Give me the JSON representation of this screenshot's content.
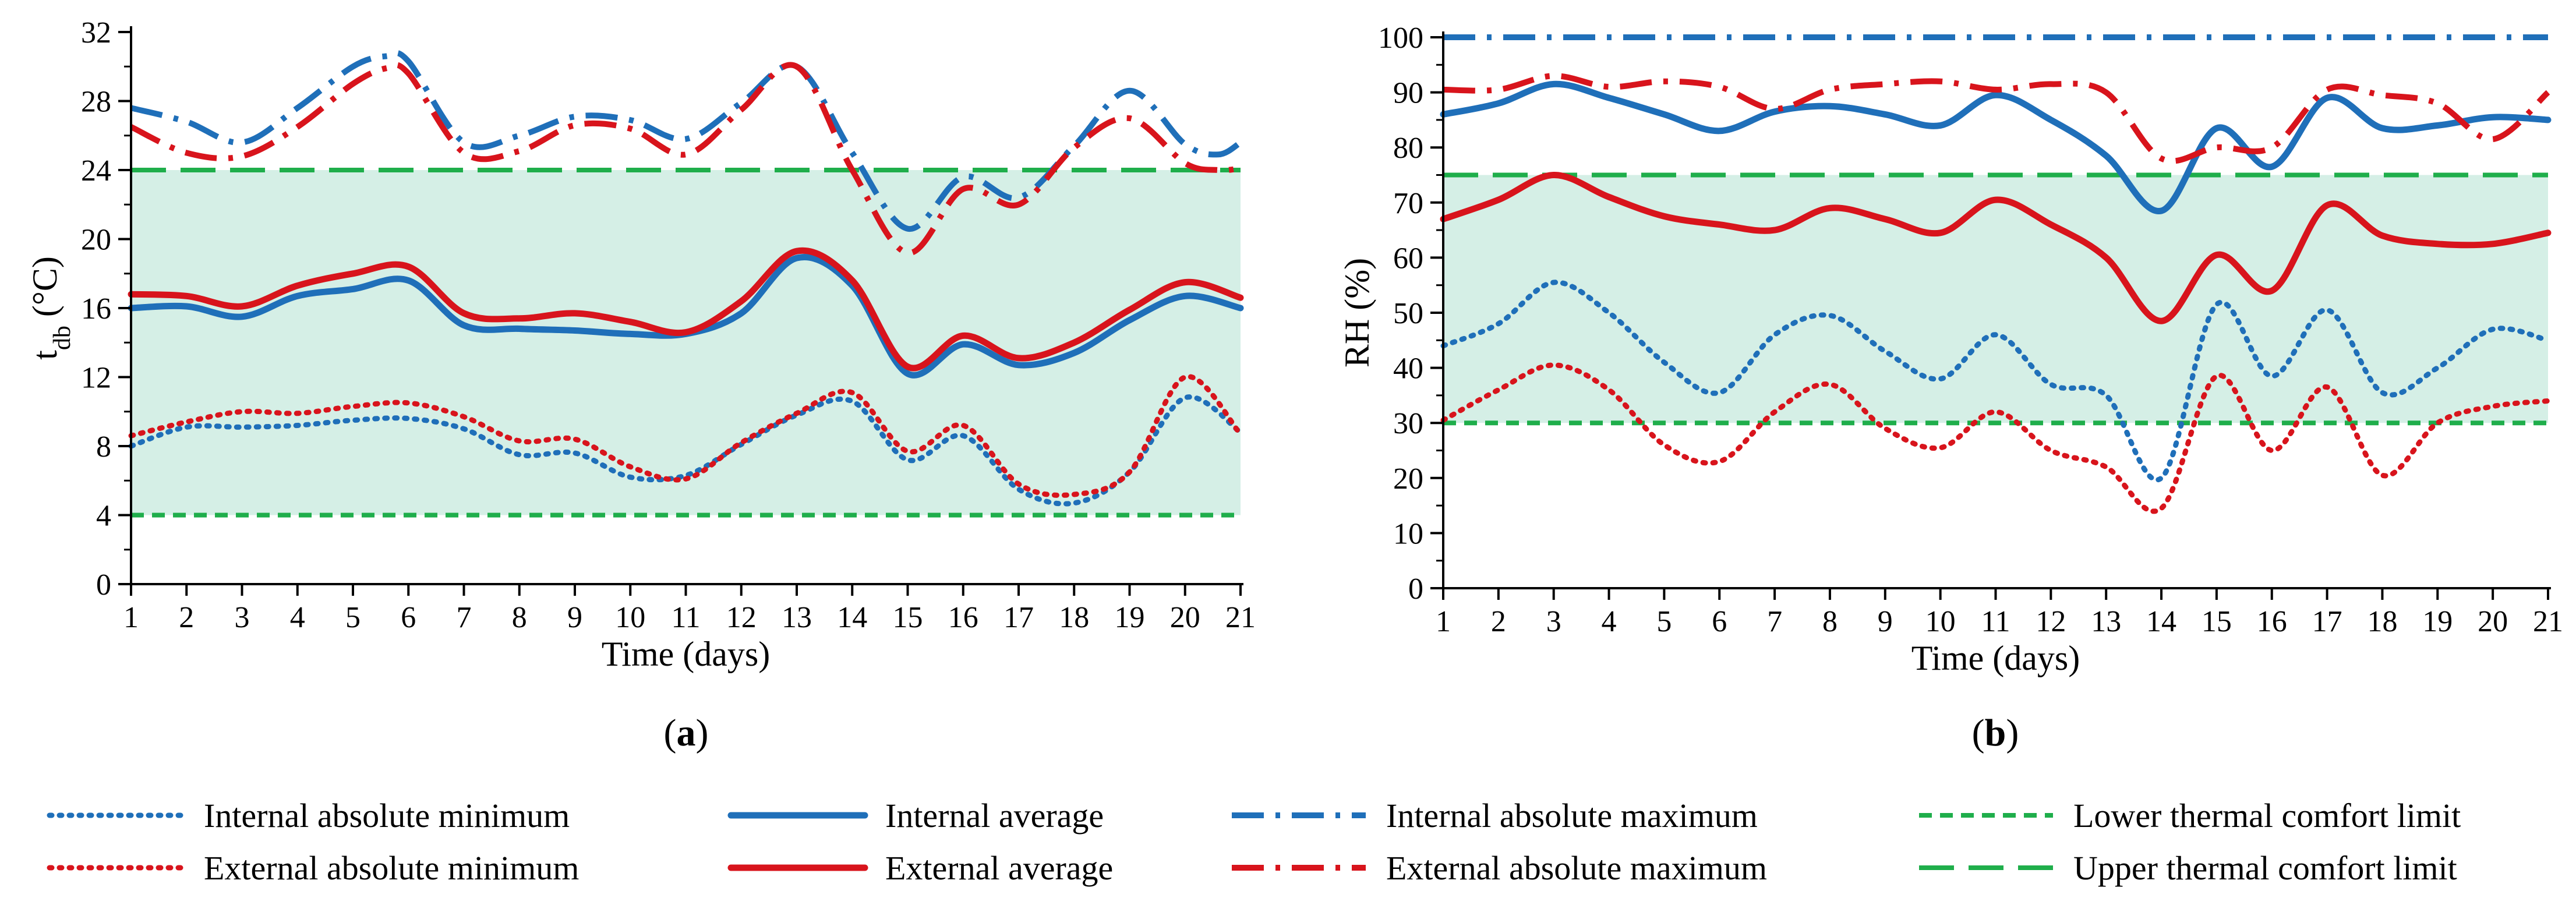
{
  "colors": {
    "internal": "#1f6fb9",
    "external": "#d8141c",
    "comfort": "#1fae4b",
    "band": "#d5efe6",
    "axis": "#000000"
  },
  "chart_data": [
    {
      "id": "a",
      "type": "line",
      "panel_label": "a",
      "ylabel_main": "t",
      "ylabel_sub": "db",
      "ylabel_unit": " (°C)",
      "xlabel": "Time (days)",
      "xlim": [
        1,
        21
      ],
      "ylim": [
        0,
        32
      ],
      "x_ticks": [
        1,
        2,
        3,
        4,
        5,
        6,
        7,
        8,
        9,
        10,
        11,
        12,
        13,
        14,
        15,
        16,
        17,
        18,
        19,
        20,
        21
      ],
      "y_ticks": [
        0,
        4,
        8,
        12,
        16,
        20,
        24,
        28,
        32
      ],
      "comfort_band": [
        4,
        24
      ],
      "series": [
        {
          "key": "int_min",
          "name": "Internal absolute minimum",
          "x": [
            1,
            2,
            3,
            4,
            5,
            6,
            7,
            8,
            9,
            10,
            11,
            12,
            13,
            14,
            15,
            16,
            17,
            18,
            19,
            20,
            21
          ],
          "values": [
            8.0,
            9.1,
            9.1,
            9.2,
            9.5,
            9.6,
            9.0,
            7.5,
            7.6,
            6.2,
            6.3,
            8.1,
            9.8,
            10.6,
            7.2,
            8.6,
            5.5,
            4.7,
            6.5,
            10.8,
            8.8
          ]
        },
        {
          "key": "ext_min",
          "name": "External absolute minimum",
          "x": [
            1,
            2,
            3,
            4,
            5,
            6,
            7,
            8,
            9,
            10,
            11,
            12,
            13,
            14,
            15,
            16,
            17,
            18,
            19,
            20,
            21
          ],
          "values": [
            8.6,
            9.4,
            10.0,
            9.9,
            10.3,
            10.5,
            9.7,
            8.3,
            8.4,
            6.8,
            6.1,
            8.2,
            9.9,
            11.1,
            7.7,
            9.2,
            5.8,
            5.2,
            6.5,
            12.0,
            8.7
          ]
        },
        {
          "key": "int_avg",
          "name": "Internal average",
          "x": [
            1,
            2,
            3,
            4,
            5,
            6,
            7,
            8,
            9,
            10,
            11,
            12,
            13,
            14,
            15,
            16,
            17,
            18,
            19,
            20,
            21
          ],
          "values": [
            16.0,
            16.1,
            15.5,
            16.7,
            17.1,
            17.6,
            15.0,
            14.8,
            14.7,
            14.5,
            14.5,
            15.7,
            18.9,
            17.3,
            12.2,
            13.9,
            12.7,
            13.4,
            15.3,
            16.7,
            16.0
          ]
        },
        {
          "key": "ext_avg",
          "name": "External average",
          "x": [
            1,
            2,
            3,
            4,
            5,
            6,
            7,
            8,
            9,
            10,
            11,
            12,
            13,
            14,
            15,
            16,
            17,
            18,
            19,
            20,
            21
          ],
          "values": [
            16.8,
            16.7,
            16.1,
            17.3,
            18.0,
            18.4,
            15.7,
            15.4,
            15.7,
            15.2,
            14.6,
            16.4,
            19.3,
            17.6,
            12.6,
            14.4,
            13.1,
            14.0,
            15.9,
            17.5,
            16.6
          ]
        },
        {
          "key": "int_max",
          "name": "Internal absolute maximum",
          "x": [
            1,
            2,
            3,
            4,
            5,
            5.6,
            6,
            7,
            8,
            9,
            10,
            11,
            12,
            13,
            14,
            15,
            16,
            17,
            18,
            19,
            20,
            20.6,
            21
          ],
          "values": [
            27.6,
            26.8,
            25.6,
            27.6,
            30.0,
            30.6,
            30.3,
            25.6,
            26.0,
            27.1,
            26.9,
            25.8,
            27.9,
            30.0,
            25.0,
            20.6,
            23.6,
            22.4,
            25.4,
            28.6,
            25.5,
            24.9,
            25.6
          ]
        },
        {
          "key": "ext_max",
          "name": "External absolute maximum",
          "x": [
            1,
            2,
            3,
            4,
            5,
            5.6,
            6,
            7,
            8,
            9,
            10,
            11,
            12,
            13,
            14,
            15,
            16,
            17,
            18,
            19,
            20,
            20.6,
            21
          ],
          "values": [
            26.5,
            25.0,
            24.8,
            26.5,
            29.0,
            29.9,
            29.6,
            25.0,
            25.1,
            26.6,
            26.4,
            24.9,
            27.5,
            30.0,
            24.0,
            19.2,
            22.9,
            22.0,
            25.3,
            27.0,
            24.4,
            24.0,
            24.1
          ]
        }
      ],
      "limits": [
        {
          "key": "lower",
          "name": "Lower thermal comfort limit",
          "value": 4
        },
        {
          "key": "upper",
          "name": "Upper thermal comfort limit",
          "value": 24
        }
      ]
    },
    {
      "id": "b",
      "type": "line",
      "panel_label": "b",
      "ylabel_main": "RH (%)",
      "ylabel_sub": "",
      "ylabel_unit": "",
      "xlabel": "Time (days)",
      "xlim": [
        1,
        21
      ],
      "ylim": [
        0,
        100
      ],
      "x_ticks": [
        1,
        2,
        3,
        4,
        5,
        6,
        7,
        8,
        9,
        10,
        11,
        12,
        13,
        14,
        15,
        16,
        17,
        18,
        19,
        20,
        21
      ],
      "y_ticks": [
        0,
        10,
        20,
        30,
        40,
        50,
        60,
        70,
        80,
        90,
        100
      ],
      "comfort_band": [
        30,
        75
      ],
      "series": [
        {
          "key": "int_min",
          "name": "Internal absolute minimum",
          "x": [
            1,
            2,
            3,
            4,
            5,
            6,
            7,
            8,
            9,
            10,
            11,
            12,
            13,
            14,
            15,
            16,
            17,
            18,
            19,
            20,
            21
          ],
          "values": [
            44,
            48,
            55.5,
            50,
            41,
            35.5,
            46,
            49.5,
            43,
            38,
            46,
            37,
            35,
            20,
            51.5,
            38.5,
            50.5,
            35.5,
            40,
            47,
            45
          ]
        },
        {
          "key": "ext_min",
          "name": "External absolute minimum",
          "x": [
            1,
            2,
            3,
            4,
            5,
            6,
            7,
            8,
            9,
            10,
            11,
            12,
            13,
            14,
            15,
            16,
            17,
            18,
            19,
            20,
            21
          ],
          "values": [
            30.5,
            36,
            40.5,
            36,
            26,
            23,
            32,
            37,
            29,
            25.5,
            32,
            25,
            22,
            14.5,
            38.5,
            25,
            36.5,
            20.5,
            30,
            33,
            34
          ]
        },
        {
          "key": "int_avg",
          "name": "Internal average",
          "x": [
            1,
            2,
            3,
            4,
            5,
            6,
            7,
            8,
            9,
            10,
            11,
            12,
            13,
            14,
            15,
            16,
            17,
            18,
            19,
            20,
            21
          ],
          "values": [
            86,
            88,
            91.5,
            89,
            86,
            83,
            86.5,
            87.5,
            86,
            84,
            89.5,
            85,
            78.5,
            68.5,
            83.5,
            76.5,
            89,
            83.5,
            84,
            85.5,
            85
          ]
        },
        {
          "key": "ext_avg",
          "name": "External average",
          "x": [
            1,
            2,
            3,
            4,
            5,
            6,
            7,
            8,
            9,
            10,
            11,
            12,
            13,
            14,
            15,
            16,
            17,
            18,
            19,
            20,
            21
          ],
          "values": [
            67,
            70.5,
            75,
            71,
            67.5,
            66,
            65,
            69,
            67,
            64.5,
            70.5,
            66,
            60,
            48.5,
            60.5,
            54,
            69.5,
            64,
            62.5,
            62.5,
            64.5
          ]
        },
        {
          "key": "int_max",
          "name": "Internal absolute maximum",
          "x": [
            1,
            2,
            3,
            4,
            5,
            6,
            7,
            8,
            9,
            10,
            11,
            12,
            13,
            14,
            15,
            16,
            17,
            18,
            19,
            20,
            21
          ],
          "values": [
            100,
            100,
            100,
            100,
            100,
            100,
            100,
            100,
            100,
            100,
            100,
            100,
            100,
            100,
            100,
            100,
            100,
            100,
            100,
            100,
            100
          ]
        },
        {
          "key": "ext_max",
          "name": "External absolute maximum",
          "x": [
            1,
            2,
            3,
            4,
            5,
            6,
            7,
            8,
            9,
            10,
            11,
            12,
            13,
            14,
            15,
            16,
            17,
            18,
            19,
            20,
            21
          ],
          "values": [
            90.5,
            90.5,
            93,
            91,
            92,
            91,
            87,
            90.5,
            91.5,
            92,
            90.5,
            91.5,
            90,
            78,
            80,
            80,
            90.5,
            89.5,
            88,
            81.5,
            90
          ]
        }
      ],
      "limits": [
        {
          "key": "lower",
          "name": "Lower thermal comfort limit",
          "value": 30
        },
        {
          "key": "upper",
          "name": "Upper thermal comfort limit",
          "value": 75
        }
      ]
    }
  ],
  "legend": [
    {
      "key": "int_min",
      "label": "Internal absolute minimum"
    },
    {
      "key": "int_avg",
      "label": "Internal average"
    },
    {
      "key": "int_max",
      "label": "Internal absolute maximum"
    },
    {
      "key": "lower",
      "label": "Lower thermal comfort limit"
    },
    {
      "key": "ext_min",
      "label": "External absolute minimum"
    },
    {
      "key": "ext_avg",
      "label": "External average"
    },
    {
      "key": "ext_max",
      "label": "External absolute maximum"
    },
    {
      "key": "upper",
      "label": "Upper thermal comfort limit"
    }
  ]
}
